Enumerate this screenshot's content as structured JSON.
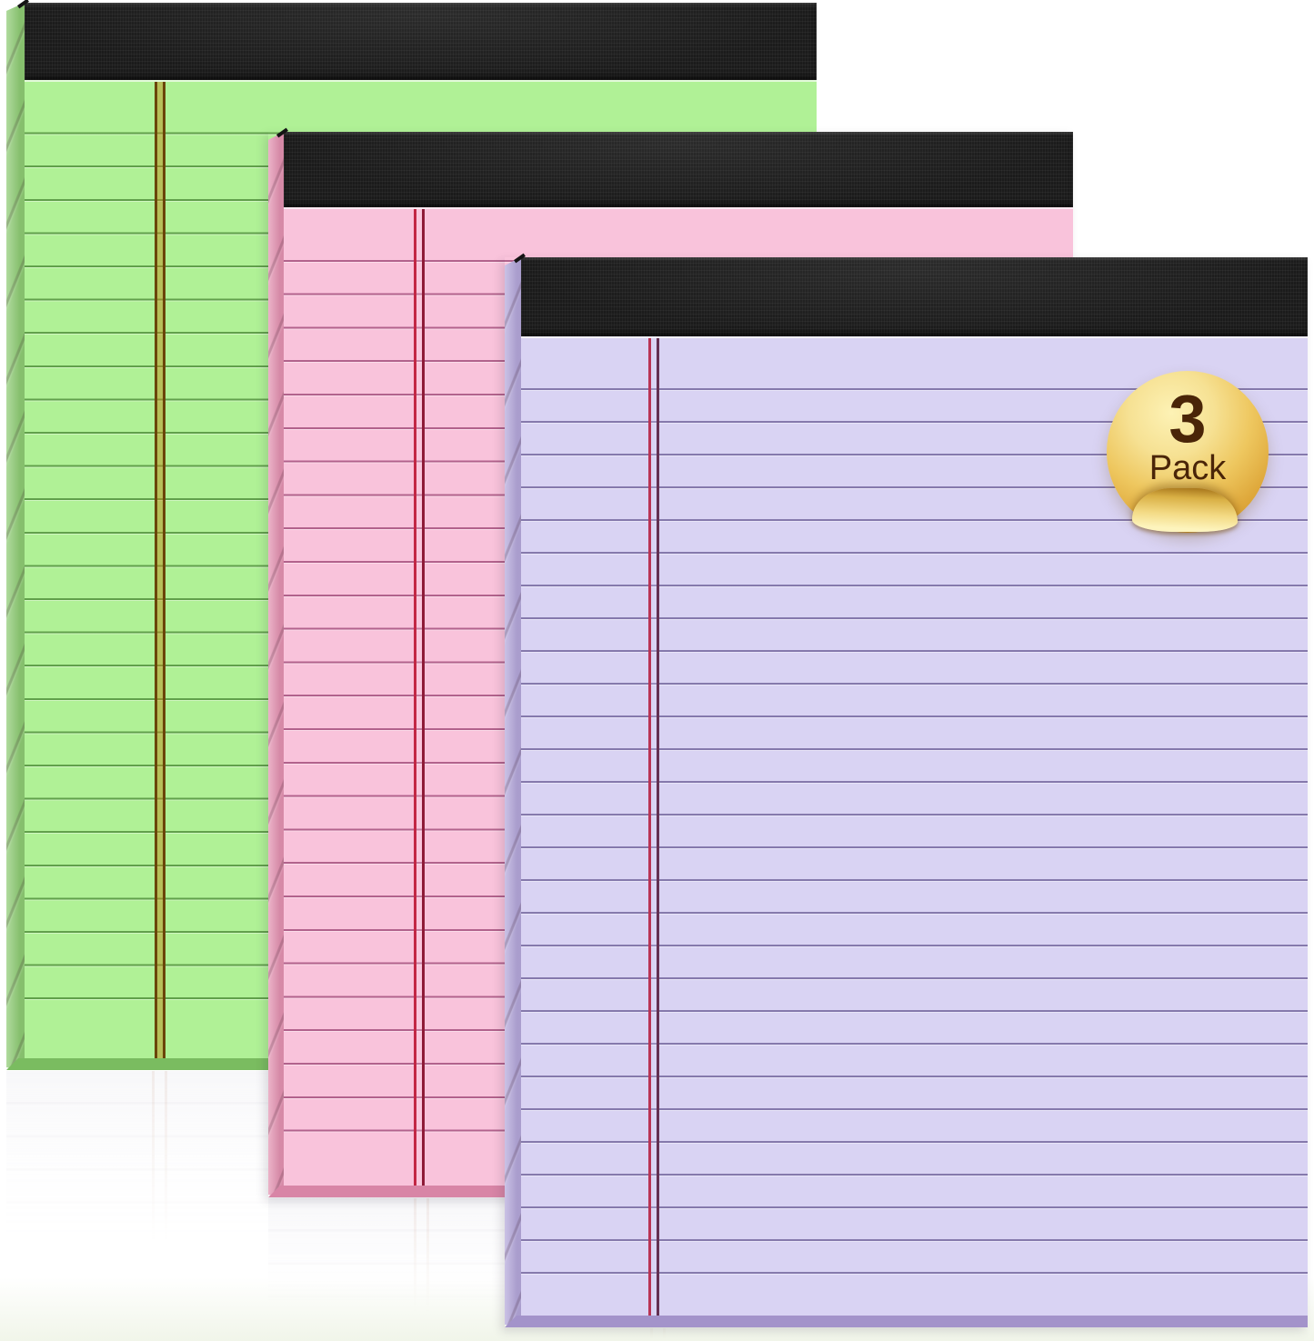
{
  "badge": {
    "number": "3",
    "label": "Pack",
    "colors": {
      "gold-light": "#fdf2b5",
      "gold-mid": "#eec75f",
      "gold-deep": "#cd9226",
      "text": "#4a2508"
    }
  },
  "pads": [
    {
      "color_name": "green",
      "colors": {
        "paper": "#b0f196",
        "line": "#61a04b",
        "margin-left": "#6a4509",
        "margin-right": "#6a4509",
        "margin-fill": "rgba(193,130,15,0.45)",
        "spine": "#8ecb74",
        "bevel": "#7abc60",
        "binding": "#1b1b1b"
      }
    },
    {
      "color_name": "pink",
      "colors": {
        "paper": "#f9c3db",
        "line": "#b2628c",
        "margin-left": "#c22745",
        "margin-right": "#8e1b38",
        "margin-fill": "rgba(250,210,228,0.25)",
        "spine": "#e392b1",
        "bevel": "#d885a6",
        "binding": "#1b1b1b"
      }
    },
    {
      "color_name": "purple",
      "colors": {
        "paper": "#d9d3f3",
        "line": "#8579ac",
        "margin-left": "#b93354",
        "margin-right": "#643052",
        "margin-fill": "rgba(225,219,248,0.25)",
        "spine": "#b4a7da",
        "bevel": "#a393ca",
        "binding": "#1b1b1b"
      }
    }
  ]
}
